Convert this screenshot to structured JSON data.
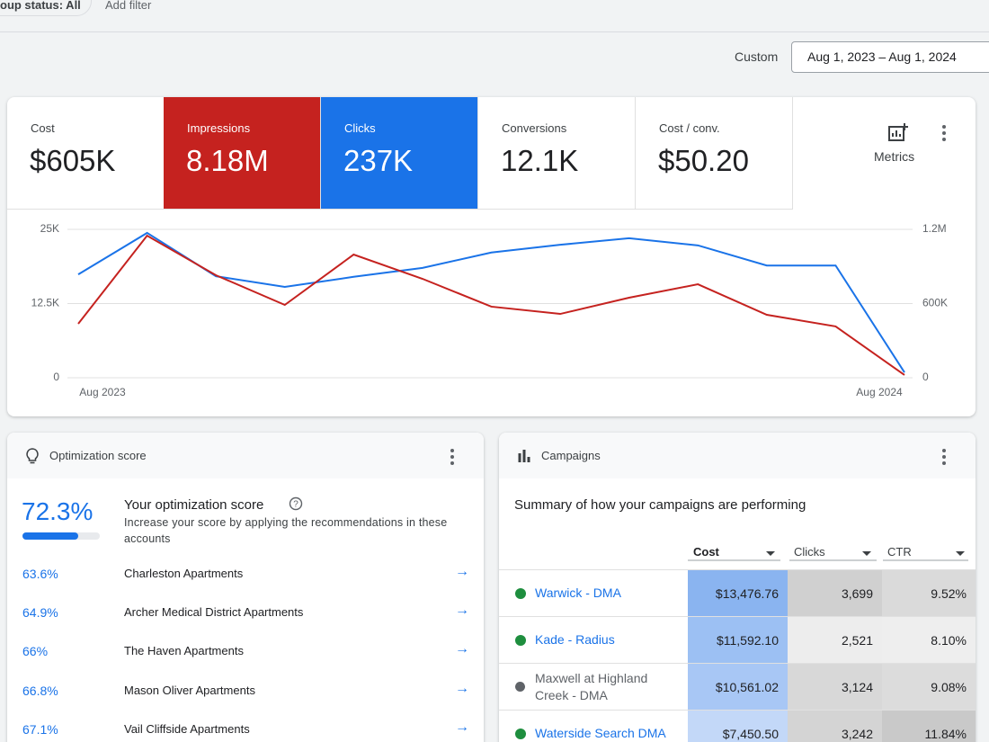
{
  "filter_bar": {
    "status_filter": "oup status: All",
    "add_filter": "Add filter"
  },
  "date_range": {
    "label": "Custom",
    "value": "Aug 1, 2023 – Aug 1, 2024"
  },
  "metrics": [
    {
      "name": "Cost",
      "value": "$605K"
    },
    {
      "name": "Impressions",
      "value": "8.18M"
    },
    {
      "name": "Clicks",
      "value": "237K"
    },
    {
      "name": "Conversions",
      "value": "12.1K"
    },
    {
      "name": "Cost / conv.",
      "value": "$50.20"
    }
  ],
  "metrics_button": "Metrics",
  "chart_data": {
    "type": "line",
    "categories": [
      "Aug 2023",
      null,
      null,
      null,
      null,
      null,
      null,
      null,
      null,
      null,
      null,
      null,
      "Aug 2024"
    ],
    "series": [
      {
        "color": "#1a73e8",
        "values": [
          17400,
          24400,
          17100,
          15300,
          17000,
          18500,
          21100,
          22400,
          23500,
          22300,
          18900,
          18900,
          900
        ]
      },
      {
        "color": "#c5221f",
        "axis": "y2",
        "values": [
          436000,
          1149000,
          829000,
          589000,
          996000,
          800000,
          575000,
          516000,
          647000,
          756000,
          509000,
          415000,
          22000
        ]
      }
    ],
    "ylim": [
      0,
      25000
    ],
    "yticks": [
      0,
      {
        "value": 12500,
        "label": "12.5K"
      },
      {
        "value": 25000,
        "label": "25K"
      }
    ],
    "y2lim": [
      0,
      1200000
    ],
    "y2ticks": [
      0,
      {
        "value": 600000,
        "label": "600K"
      },
      {
        "value": 1200000,
        "label": "1.2M"
      }
    ],
    "grid": true
  },
  "optimization": {
    "title": "Optimization score",
    "score": {
      "value": 72.3,
      "label": "72.3%"
    },
    "heading": "Your optimization score",
    "description": "Increase your score by applying the recommendations in these accounts",
    "accounts": [
      {
        "score": "63.6%",
        "name": "Charleston Apartments"
      },
      {
        "score": "64.9%",
        "name": "Archer Medical District Apartments"
      },
      {
        "score": "66%",
        "name": "The Haven Apartments"
      },
      {
        "score": "66.8%",
        "name": "Mason Oliver Apartments"
      },
      {
        "score": "67.1%",
        "name": "Vail Cliffside Apartments"
      }
    ]
  },
  "campaigns": {
    "title": "Campaigns",
    "summary": "Summary of how your campaigns are performing",
    "columns": [
      "Cost",
      "Clicks",
      "CTR"
    ],
    "rows": [
      {
        "name": "Warwick - DMA",
        "cost": "$13,476.76",
        "clicks": "3,699",
        "ctr": "9.52%"
      },
      {
        "name": "Kade - Radius",
        "cost": "$11,592.10",
        "clicks": "2,521",
        "ctr": "8.10%"
      },
      {
        "name": "Maxwell at Highland Creek - DMA",
        "cost": "$10,561.02",
        "clicks": "3,124",
        "ctr": "9.08%"
      },
      {
        "name": "Waterside Search DMA",
        "cost": "$7,450.50",
        "clicks": "3,242",
        "ctr": "11.84%"
      }
    ]
  }
}
